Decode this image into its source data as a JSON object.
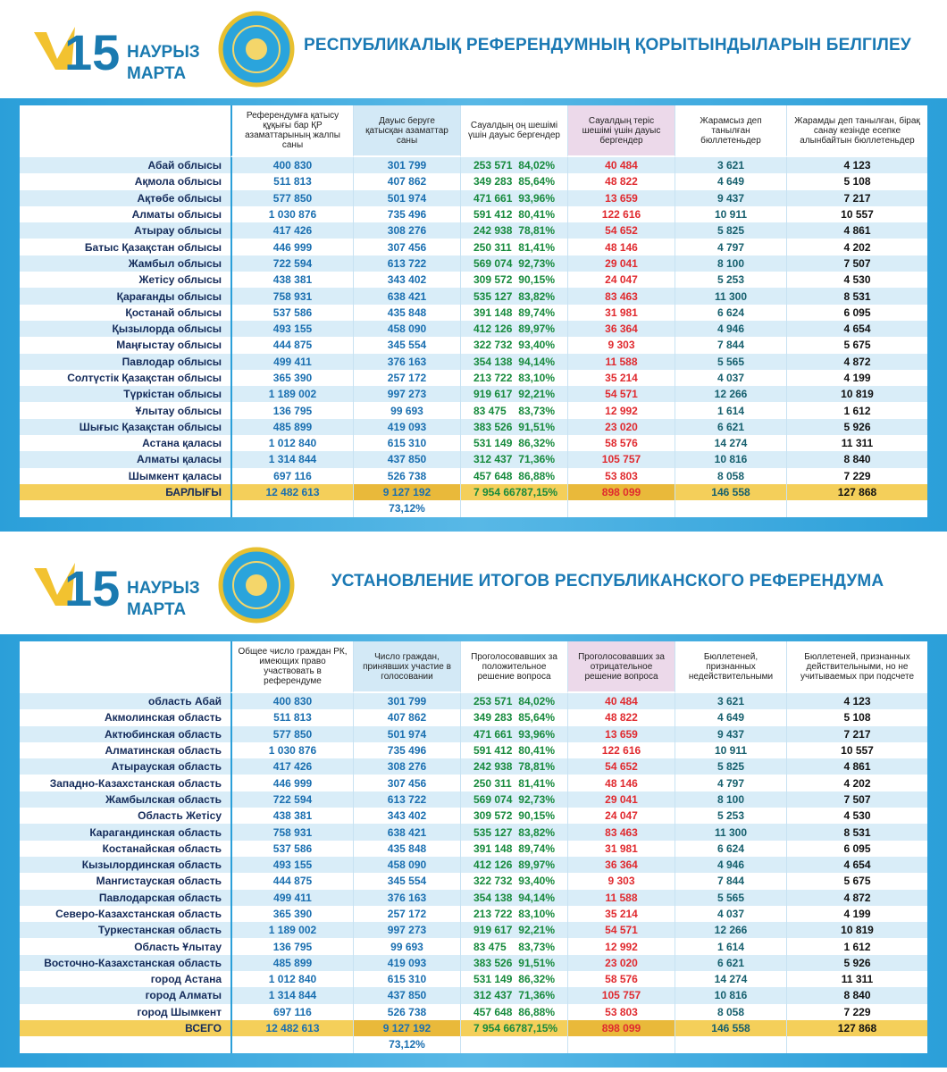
{
  "logo": {
    "number": "15",
    "line1": "НАУРЫЗ",
    "line2": "МАРТА"
  },
  "panels": [
    {
      "title": "РЕСПУБЛИКАЛЫҚ РЕФЕРЕНДУМНЫҢ ҚОРЫТЫНДЫЛАРЫН БЕЛГІЛЕУ",
      "headers": [
        "Референдумға қатысу құқығы бар ҚР азаматтарының жалпы саны",
        "Дауыс беруге қатысқан азаматтар саны",
        "Сауалдың оң шешімі үшін дауыс бергендер",
        "Сауалдың теріс шешімі үшін дауыс бергендер",
        "Жарамсыз деп танылған бюллетеньдер",
        "Жарамды деп танылған, бірақ санау кезінде есепке алынбайтын бюллетеньдер"
      ],
      "regions": [
        "Абай облысы",
        "Ақмола облысы",
        "Ақтөбе облысы",
        "Алматы облысы",
        "Атырау облысы",
        "Батыс Қазақстан облысы",
        "Жамбыл облысы",
        "Жетісу облысы",
        "Қарағанды облысы",
        "Қостанай облысы",
        "Қызылорда облысы",
        "Маңғыстау облысы",
        "Павлодар облысы",
        "Солтүстік Қазақстан облысы",
        "Түркістан облысы",
        "Ұлытау облысы",
        "Шығыс Қазақстан облысы",
        "Астана қаласы",
        "Алматы қаласы",
        "Шымкент қаласы"
      ],
      "total_label": "БАРЛЫҒЫ"
    },
    {
      "title": "УСТАНОВЛЕНИЕ ИТОГОВ РЕСПУБЛИКАНСКОГО РЕФЕРЕНДУМА",
      "headers": [
        "Общее число граждан РК, имеющих право участвовать в референдуме",
        "Число граждан, принявших участие в голосовании",
        "Проголосовавших за положительное решение вопроса",
        "Проголосовавших за отрицательное решение вопроса",
        "Бюллетеней, признанных недействительными",
        "Бюллетеней, признанных действительными, но не учитываемых при подсчете"
      ],
      "regions": [
        "область Абай",
        "Акмолинская область",
        "Актюбинская область",
        "Алматинская область",
        "Атырауская область",
        "Западно-Казахстанская область",
        "Жамбылская область",
        "Область Жетісу",
        "Карагандинская область",
        "Костанайская область",
        "Кызылординская область",
        "Мангистауская область",
        "Павлодарская область",
        "Северо-Казахстанская область",
        "Туркестанская область",
        "Область Ұлытау",
        "Восточно-Казахстанская область",
        "город Астана",
        "город Алматы",
        "город Шымкент"
      ],
      "total_label": "ВСЕГО"
    }
  ],
  "rows": [
    [
      "400 830",
      "301 799",
      "253 571",
      "84,02%",
      "40 484",
      "3 621",
      "4 123"
    ],
    [
      "511 813",
      "407 862",
      "349 283",
      "85,64%",
      "48 822",
      "4 649",
      "5 108"
    ],
    [
      "577 850",
      "501 974",
      "471 661",
      "93,96%",
      "13 659",
      "9 437",
      "7 217"
    ],
    [
      "1 030 876",
      "735 496",
      "591 412",
      "80,41%",
      "122 616",
      "10 911",
      "10 557"
    ],
    [
      "417 426",
      "308 276",
      "242 938",
      "78,81%",
      "54 652",
      "5 825",
      "4 861"
    ],
    [
      "446 999",
      "307 456",
      "250 311",
      "81,41%",
      "48 146",
      "4 797",
      "4 202"
    ],
    [
      "722 594",
      "613 722",
      "569 074",
      "92,73%",
      "29 041",
      "8 100",
      "7 507"
    ],
    [
      "438 381",
      "343 402",
      "309 572",
      "90,15%",
      "24 047",
      "5 253",
      "4 530"
    ],
    [
      "758 931",
      "638 421",
      "535 127",
      "83,82%",
      "83 463",
      "11 300",
      "8 531"
    ],
    [
      "537 586",
      "435 848",
      "391 148",
      "89,74%",
      "31 981",
      "6 624",
      "6 095"
    ],
    [
      "493 155",
      "458 090",
      "412 126",
      "89,97%",
      "36 364",
      "4 946",
      "4 654"
    ],
    [
      "444 875",
      "345 554",
      "322 732",
      "93,40%",
      "9 303",
      "7 844",
      "5 675"
    ],
    [
      "499 411",
      "376 163",
      "354 138",
      "94,14%",
      "11 588",
      "5 565",
      "4 872"
    ],
    [
      "365 390",
      "257 172",
      "213 722",
      "83,10%",
      "35 214",
      "4 037",
      "4 199"
    ],
    [
      "1 189 002",
      "997 273",
      "919 617",
      "92,21%",
      "54 571",
      "12 266",
      "10 819"
    ],
    [
      "136 795",
      "99 693",
      "83 475",
      "83,73%",
      "12 992",
      "1 614",
      "1 612"
    ],
    [
      "485 899",
      "419 093",
      "383 526",
      "91,51%",
      "23 020",
      "6 621",
      "5 926"
    ],
    [
      "1 012 840",
      "615 310",
      "531 149",
      "86,32%",
      "58 576",
      "14 274",
      "11 311"
    ],
    [
      "1 314 844",
      "437 850",
      "312 437",
      "71,36%",
      "105 757",
      "10 816",
      "8 840"
    ],
    [
      "697 116",
      "526 738",
      "457 648",
      "86,88%",
      "53 803",
      "8 058",
      "7 229"
    ]
  ],
  "total": [
    "12 482 613",
    "9 127 192",
    "7 954 667",
    "87,15%",
    "898 099",
    "146 558",
    "127 868"
  ],
  "turnout": "73,12%"
}
